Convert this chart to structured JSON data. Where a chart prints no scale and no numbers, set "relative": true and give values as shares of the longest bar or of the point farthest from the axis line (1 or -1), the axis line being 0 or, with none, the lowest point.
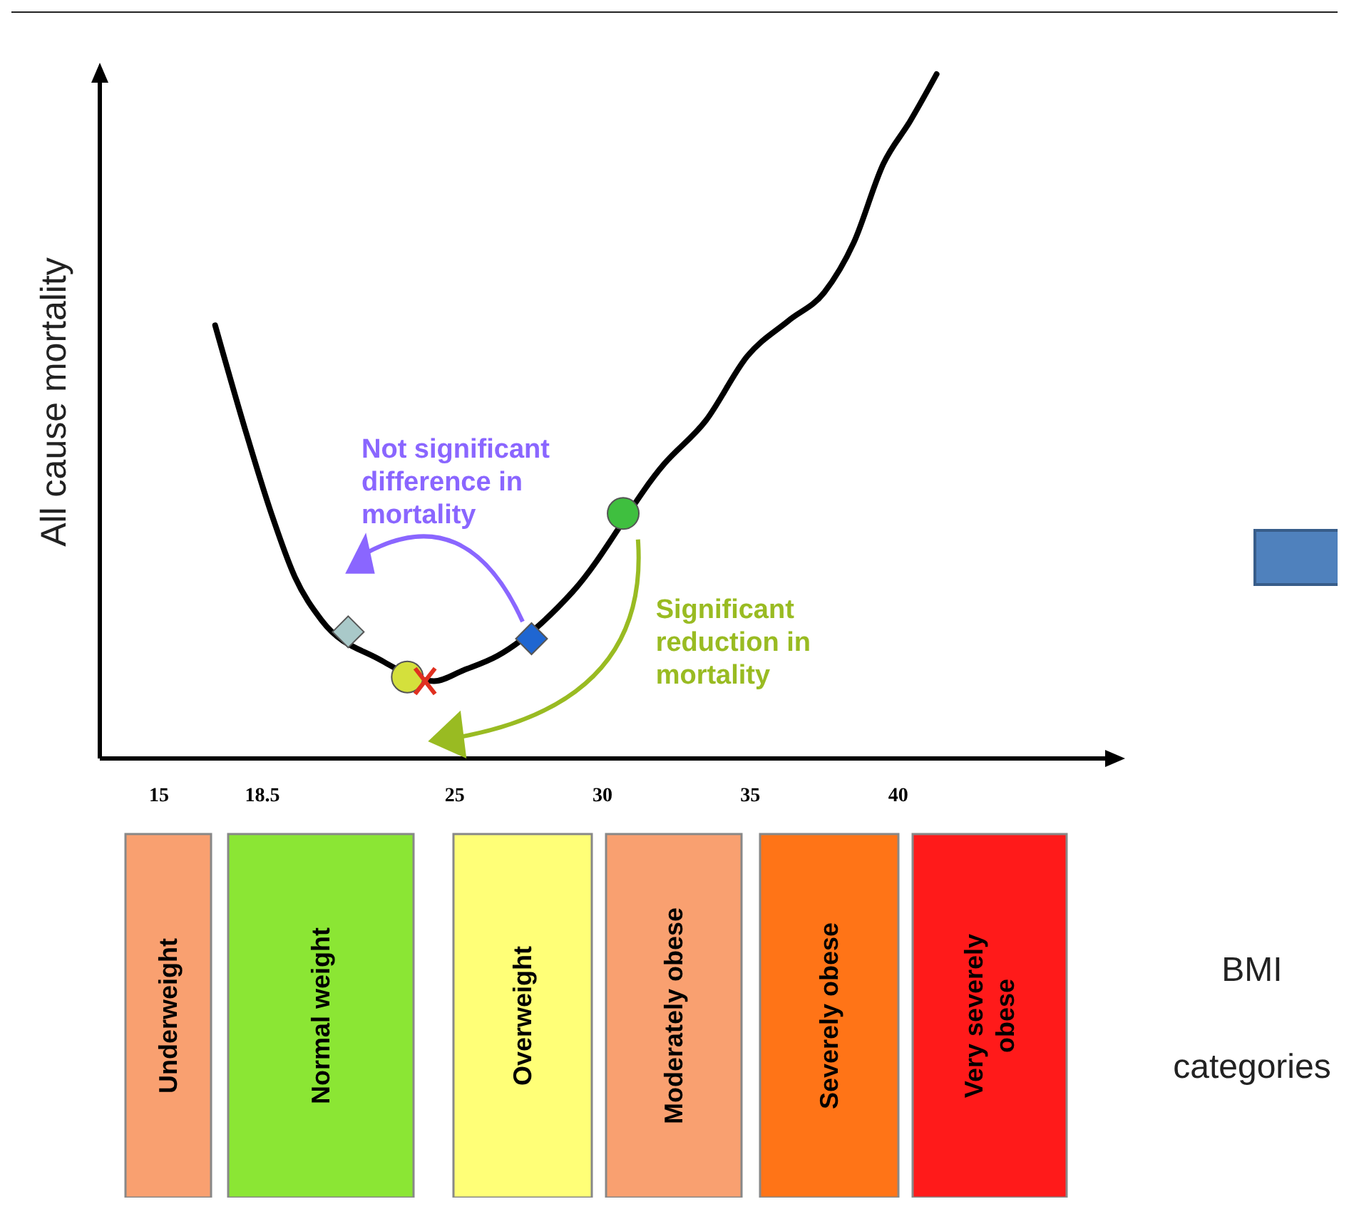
{
  "chart_data": [
    {
      "type": "line",
      "relative": true,
      "ylabel": "All cause mortality",
      "xlim": [
        13,
        47
      ],
      "xticks": [
        15,
        18.5,
        25,
        30,
        35,
        40
      ],
      "grid": false,
      "line_style": "solid",
      "marker": "none",
      "x": [
        16.9,
        17.9,
        18.8,
        19.6,
        20.5,
        22.4,
        24.3,
        25.3,
        26.45,
        29.0,
        32.1,
        33.5,
        34.9,
        36.3,
        37.5,
        38.5,
        39.5,
        40.4,
        41.3
      ],
      "series": [
        {
          "type": "line",
          "color": "#000000",
          "values": [
            0.633,
            0.483,
            0.358,
            0.265,
            0.202,
            0.146,
            0.113,
            0.129,
            0.15,
            0.244,
            0.431,
            0.494,
            0.588,
            0.64,
            0.681,
            0.754,
            0.869,
            0.931,
            1
          ]
        },
        {
          "type": "scatter",
          "marker": "diamond",
          "color": "#a9c9c9",
          "x": [
            21.4
          ],
          "values": [
            0.185
          ]
        },
        {
          "type": "scatter",
          "marker": "circle",
          "color": "#d4e03c",
          "x": [
            23.4
          ],
          "values": [
            0.119
          ]
        },
        {
          "type": "scatter",
          "marker": "cross",
          "color": "#e03020",
          "x": [
            24.0
          ],
          "values": [
            0.113
          ]
        },
        {
          "type": "scatter",
          "marker": "diamond",
          "color": "#1f66d1",
          "x": [
            27.6
          ],
          "values": [
            0.175
          ]
        },
        {
          "type": "scatter",
          "marker": "circle",
          "color": "#3fbf3f",
          "x": [
            30.7
          ],
          "values": [
            0.358
          ]
        }
      ],
      "annotations": [
        "Not significant difference in mortality",
        "Significant reduction in mortality"
      ]
    },
    {
      "type": "other",
      "title": "BMI categories",
      "annotations": [
        "Underweight",
        "Normal weight",
        "Overweight",
        "Moderately obese",
        "Severely obese",
        "Very severely obese"
      ],
      "colors": [
        "#f9a070",
        "#8be634",
        "#ffff77",
        "#f9a070",
        "#ff7417",
        "#ff1a1a"
      ]
    }
  ]
}
